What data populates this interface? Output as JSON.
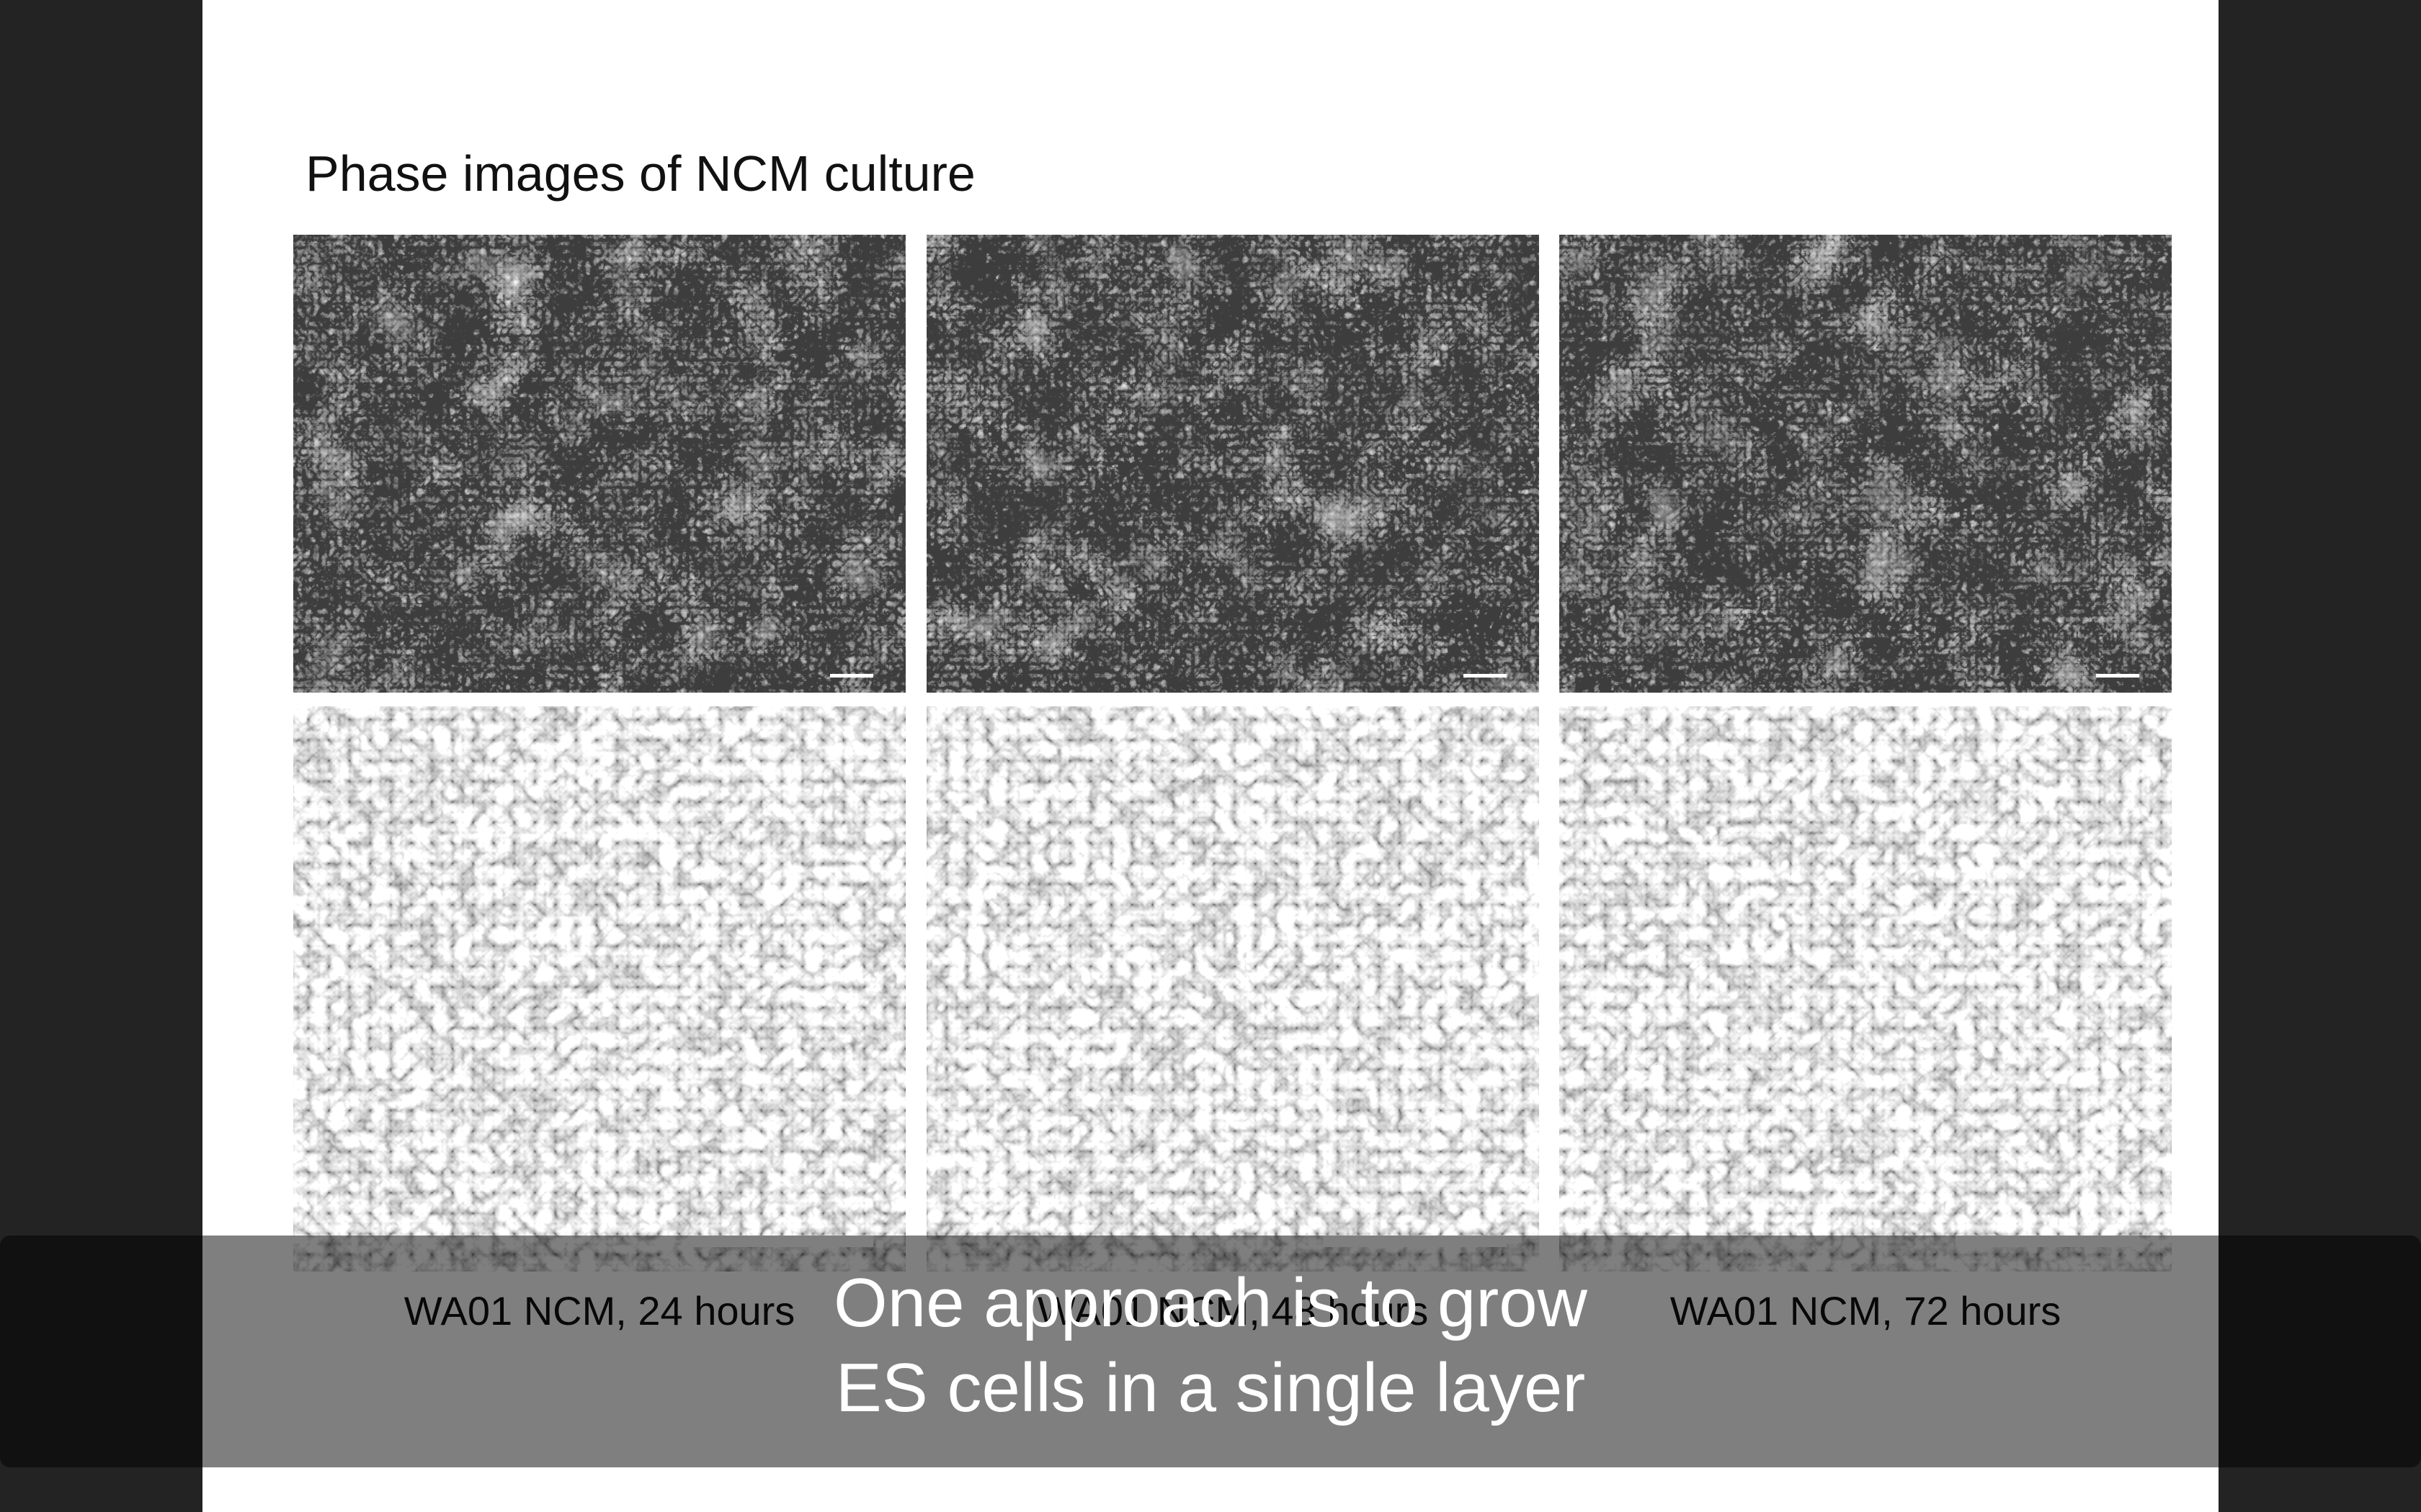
{
  "slide": {
    "title": "Phase images of NCM culture",
    "captions": [
      "WA01 NCM, 24 hours",
      "WA01 NCM, 48 hours",
      "WA01 NCM, 72 hours"
    ]
  },
  "subtitle": {
    "lines": [
      "One approach is to grow",
      "ES cells in a single layer"
    ]
  }
}
